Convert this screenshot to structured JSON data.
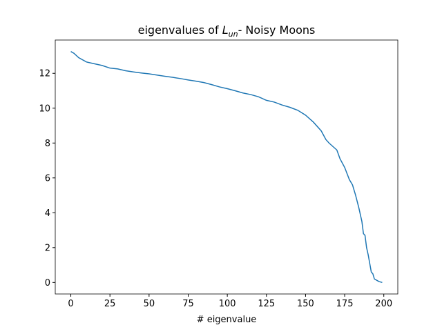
{
  "chart_data": {
    "type": "line",
    "title": [
      "eigenvalues of ",
      "L",
      "un",
      "- Noisy Moons"
    ],
    "xlabel": "# eigenvalue",
    "x": [
      0,
      2,
      5,
      10,
      15,
      20,
      25,
      30,
      35,
      40,
      45,
      50,
      55,
      60,
      65,
      70,
      75,
      80,
      85,
      90,
      95,
      100,
      105,
      110,
      115,
      120,
      125,
      130,
      135,
      140,
      145,
      150,
      155,
      160,
      163,
      165,
      170,
      172,
      175,
      178,
      180,
      182,
      184,
      186,
      187,
      188,
      189,
      190,
      191,
      192,
      193,
      194,
      196,
      197,
      199
    ],
    "series": [
      {
        "name": "eigenvalues",
        "color": "#1f77b4",
        "values": [
          13.25,
          13.15,
          12.9,
          12.65,
          12.55,
          12.45,
          12.3,
          12.25,
          12.15,
          12.08,
          12.02,
          11.97,
          11.9,
          11.83,
          11.77,
          11.7,
          11.62,
          11.55,
          11.47,
          11.35,
          11.22,
          11.12,
          11.0,
          10.87,
          10.78,
          10.65,
          10.45,
          10.35,
          10.18,
          10.05,
          9.88,
          9.6,
          9.2,
          8.7,
          8.2,
          8.0,
          7.6,
          7.1,
          6.6,
          5.9,
          5.6,
          5.0,
          4.3,
          3.5,
          2.8,
          2.7,
          2.0,
          1.6,
          1.1,
          0.6,
          0.5,
          0.2,
          0.1,
          0.05,
          0.0
        ]
      }
    ],
    "xlim": [
      -9.95,
      208.95
    ],
    "ylim": [
      -0.66,
      13.91
    ],
    "xticks": [
      0,
      25,
      50,
      75,
      100,
      125,
      150,
      175,
      200
    ],
    "yticks": [
      0,
      2,
      4,
      6,
      8,
      10,
      12
    ],
    "grid": false
  }
}
